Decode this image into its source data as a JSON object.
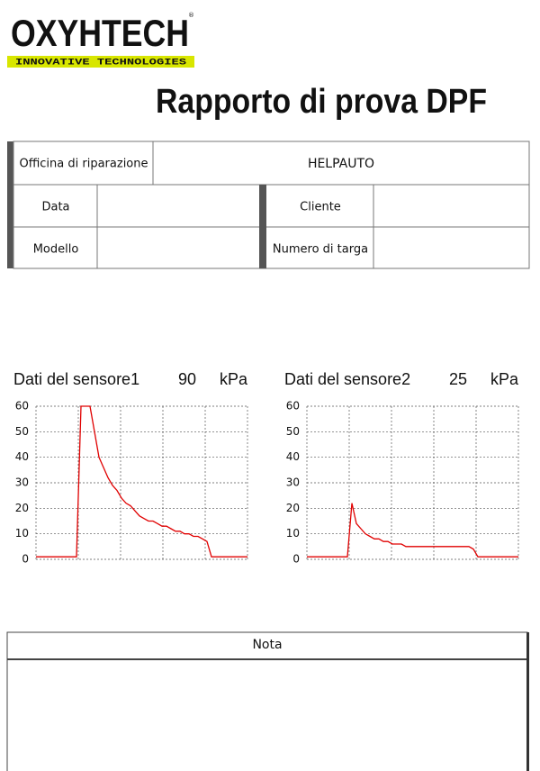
{
  "logo": {
    "name": "OXYHTECH",
    "mark": "®",
    "tagline": "INNOVATIVE TECHNOLOGIES"
  },
  "title": "Rapporto di prova DPF",
  "form": {
    "workshop_label": "Officina di riparazione",
    "workshop_value": "HELPAUTO",
    "date_label": "Data",
    "client_label": "Cliente",
    "model_label": "Modello",
    "plate_label": "Numero di targa"
  },
  "chart_data": [
    {
      "type": "line",
      "title": "Dati del sensore1",
      "reading": 90,
      "unit": "kPa",
      "color": "#e00000",
      "ylim": [
        0,
        60
      ],
      "yticks": [
        0,
        10,
        20,
        30,
        40,
        50,
        60
      ],
      "grid": true,
      "values": [
        1,
        1,
        1,
        1,
        1,
        1,
        1,
        1,
        1,
        1,
        60,
        60,
        60,
        50,
        40,
        36,
        32,
        29,
        27,
        24,
        22,
        21,
        19,
        17,
        16,
        15,
        15,
        14,
        13,
        13,
        12,
        11,
        11,
        10,
        10,
        9,
        9,
        8,
        7,
        1,
        1,
        1,
        1,
        1,
        1,
        1,
        1,
        1
      ]
    },
    {
      "type": "line",
      "title": "Dati del sensore2",
      "reading": 25,
      "unit": "kPa",
      "color": "#e00000",
      "ylim": [
        0,
        60
      ],
      "yticks": [
        0,
        10,
        20,
        30,
        40,
        50,
        60
      ],
      "grid": true,
      "values": [
        1,
        1,
        1,
        1,
        1,
        1,
        1,
        1,
        1,
        1,
        22,
        14,
        12,
        10,
        9,
        8,
        8,
        7,
        7,
        6,
        6,
        6,
        5,
        5,
        5,
        5,
        5,
        5,
        5,
        5,
        5,
        5,
        5,
        5,
        5,
        5,
        5,
        4,
        1,
        1,
        1,
        1,
        1,
        1,
        1,
        1,
        1,
        1
      ]
    }
  ],
  "notes": {
    "title": "Nota"
  }
}
